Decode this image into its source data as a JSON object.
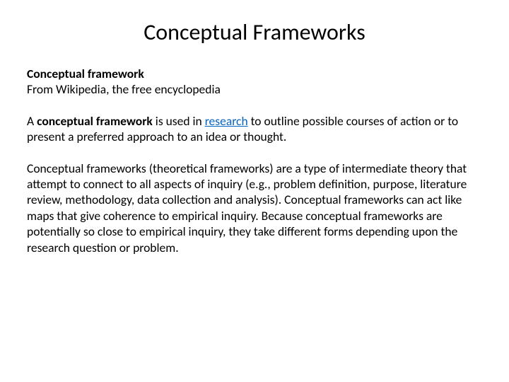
{
  "title": "Conceptual Frameworks",
  "heading_bold": "Conceptual framework",
  "source_line": "From Wikipedia, the free encyclopedia",
  "p1_prefix": "A ",
  "p1_bold": "conceptual framework",
  "p1_mid": " is used in ",
  "p1_link": "research",
  "p1_suffix": " to outline possible courses of action or to present a preferred approach to an idea or thought.",
  "p2": "Conceptual frameworks (theoretical frameworks) are a type of intermediate theory that attempt to connect to all aspects of inquiry (e.g., problem definition, purpose, literature review, methodology, data collection and analysis). Conceptual frameworks can act like maps that give coherence to empirical inquiry. Because conceptual frameworks are potentially so close to empirical inquiry, they take different forms depending upon the research question or problem.",
  "styling": {
    "background_color": "#ffffff",
    "text_color": "#000000",
    "link_color": "#0563c1",
    "title_fontsize": 32,
    "body_fontsize": 17.5,
    "font_family": "Calibri",
    "slide_width": 720,
    "slide_height": 540
  }
}
